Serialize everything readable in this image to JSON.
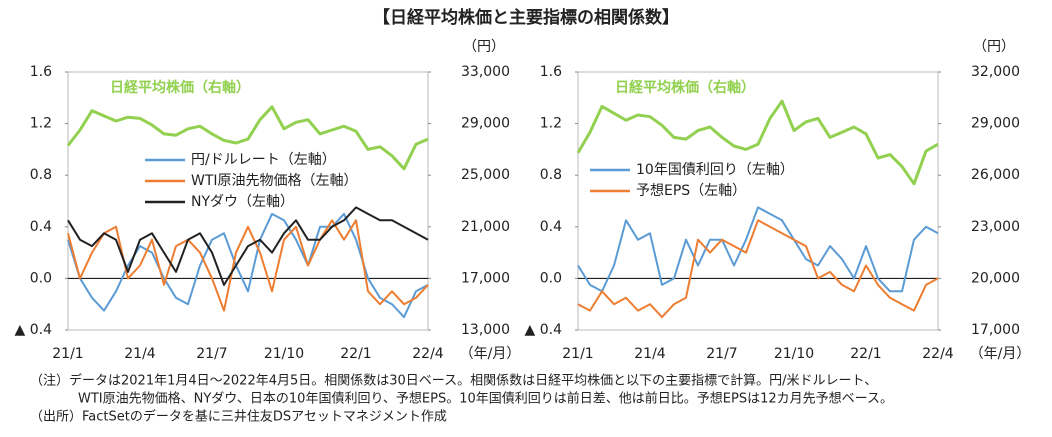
{
  "title": "【日経平均株価と主要指標の相関係数】",
  "notes": [
    "（注）データは2021年1月4日～2022年4月5日。相関係数は30日ベース。相関係数は日経平均株価と以下の主要指標で計算。円/米ドルレート、",
    "WTI原油先物価格、NYダウ、日本の10年国債利回り、予想EPS。10年国債利回りは前日差、他は前日比。予想EPSは12カ月先予想ベース。",
    "（出所）FactSetのデータを基に三井住友DSアセットマネジメント作成"
  ],
  "chart_data": [
    {
      "type": "line",
      "x": [
        "21/1",
        null,
        null,
        null,
        null,
        null,
        "21/4",
        null,
        null,
        null,
        null,
        null,
        "21/7",
        null,
        null,
        null,
        null,
        null,
        "21/10",
        null,
        null,
        null,
        null,
        null,
        "22/1",
        null,
        null,
        null,
        null,
        null,
        "22/4"
      ],
      "x_unit": "（年/月）",
      "y2_unit": "（円）",
      "ylim": [
        -0.4,
        1.6
      ],
      "yticks": [
        {
          "value": -0.4,
          "label": "▲ 0.4"
        },
        {
          "value": 0,
          "label": "0.0"
        },
        0.4,
        0.8,
        1.2,
        1.6
      ],
      "y2lim": [
        13000,
        33000
      ],
      "y2ticks": [
        {
          "value": 13000,
          "label": "13,000"
        },
        {
          "value": 17000,
          "label": "17,000"
        },
        {
          "value": 21000,
          "label": "21,000"
        },
        {
          "value": 25000,
          "label": "25,000"
        },
        {
          "value": 29000,
          "label": "29,000"
        },
        {
          "value": 33000,
          "label": "33,000"
        }
      ],
      "series": [
        {
          "name": "日経平均株価（右軸）",
          "color": "#92d050",
          "axis": "y2",
          "values": [
            27300,
            28500,
            30000,
            29600,
            29200,
            29500,
            29400,
            28900,
            28200,
            28100,
            28600,
            28800,
            28200,
            27700,
            27500,
            27800,
            29300,
            30300,
            28600,
            29100,
            29300,
            28200,
            28500,
            28800,
            28400,
            27000,
            27200,
            26500,
            25500,
            27400,
            27800
          ]
        },
        {
          "name": "円/ドルレート（左軸）",
          "color": "#5b9bd5",
          "values": [
            0.3,
            0.0,
            -0.15,
            -0.25,
            -0.1,
            0.1,
            0.25,
            0.2,
            0.0,
            -0.15,
            -0.2,
            0.1,
            0.3,
            0.35,
            0.1,
            -0.1,
            0.3,
            0.5,
            0.45,
            0.3,
            0.1,
            0.4,
            0.4,
            0.5,
            0.3,
            0.0,
            -0.15,
            -0.2,
            -0.3,
            -0.1,
            -0.05
          ]
        },
        {
          "name": "WTI原油先物価格（左軸）",
          "color": "#ed7d31",
          "values": [
            0.35,
            0.0,
            0.2,
            0.35,
            0.4,
            0.0,
            0.1,
            0.3,
            -0.05,
            0.25,
            0.3,
            0.2,
            0.0,
            -0.25,
            0.2,
            0.4,
            0.2,
            -0.1,
            0.3,
            0.4,
            0.1,
            0.3,
            0.45,
            0.3,
            0.45,
            -0.1,
            -0.2,
            -0.1,
            -0.2,
            -0.15,
            -0.05
          ]
        },
        {
          "name": "NYダウ（左軸）",
          "color": "#222222",
          "values": [
            0.45,
            0.3,
            0.25,
            0.35,
            0.3,
            0.05,
            0.3,
            0.35,
            0.2,
            0.05,
            0.3,
            0.35,
            0.2,
            -0.05,
            0.1,
            0.25,
            0.3,
            0.2,
            0.35,
            0.45,
            0.3,
            0.3,
            0.4,
            0.45,
            0.55,
            0.5,
            0.45,
            0.45,
            0.4,
            0.35,
            0.3
          ]
        }
      ]
    },
    {
      "type": "line",
      "x": [
        "21/1",
        null,
        null,
        null,
        null,
        null,
        "21/4",
        null,
        null,
        null,
        null,
        null,
        "21/7",
        null,
        null,
        null,
        null,
        null,
        "21/10",
        null,
        null,
        null,
        null,
        null,
        "22/1",
        null,
        null,
        null,
        null,
        null,
        "22/4"
      ],
      "x_unit": "（年/月）",
      "y2_unit": "（円）",
      "ylim": [
        -0.4,
        1.6
      ],
      "yticks": [
        {
          "value": -0.4,
          "label": "▲ 0.4"
        },
        {
          "value": 0,
          "label": "0.0"
        },
        0.4,
        0.8,
        1.2,
        1.6
      ],
      "y2lim": [
        17000,
        32000
      ],
      "y2ticks": [
        {
          "value": 17000,
          "label": "17,000"
        },
        {
          "value": 20000,
          "label": "20,000"
        },
        {
          "value": 23000,
          "label": "23,000"
        },
        {
          "value": 26000,
          "label": "26,000"
        },
        {
          "value": 29000,
          "label": "29,000"
        },
        {
          "value": 32000,
          "label": "32,000"
        }
      ],
      "series": [
        {
          "name": "日経平均株価（右軸）",
          "color": "#92d050",
          "axis": "y2",
          "values": [
            27300,
            28500,
            30000,
            29600,
            29200,
            29500,
            29400,
            28900,
            28200,
            28100,
            28600,
            28800,
            28200,
            27700,
            27500,
            27800,
            29300,
            30300,
            28600,
            29100,
            29300,
            28200,
            28500,
            28800,
            28400,
            27000,
            27200,
            26500,
            25500,
            27400,
            27800
          ]
        },
        {
          "name": "10年国債利回り（左軸）",
          "color": "#5b9bd5",
          "values": [
            0.1,
            -0.05,
            -0.1,
            0.1,
            0.45,
            0.3,
            0.35,
            -0.05,
            0.0,
            0.3,
            0.1,
            0.3,
            0.3,
            0.1,
            0.3,
            0.55,
            0.5,
            0.45,
            0.3,
            0.15,
            0.1,
            0.25,
            0.15,
            0.0,
            0.25,
            0.0,
            -0.1,
            -0.1,
            0.3,
            0.4,
            0.35
          ]
        },
        {
          "name": "予想EPS（左軸）",
          "color": "#ed7d31",
          "values": [
            -0.2,
            -0.25,
            -0.1,
            -0.2,
            -0.15,
            -0.25,
            -0.2,
            -0.3,
            -0.2,
            -0.15,
            0.3,
            0.2,
            0.3,
            0.25,
            0.2,
            0.45,
            0.4,
            0.35,
            0.3,
            0.25,
            0.0,
            0.05,
            -0.05,
            -0.1,
            0.1,
            -0.05,
            -0.15,
            -0.2,
            -0.25,
            -0.05,
            0.0
          ]
        }
      ]
    }
  ]
}
